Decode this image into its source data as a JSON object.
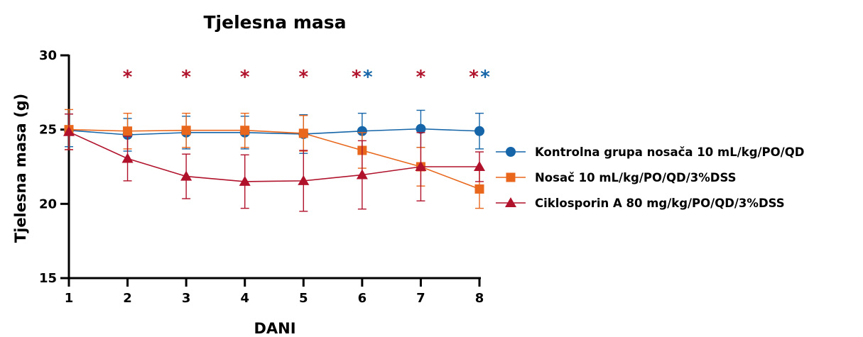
{
  "chart_data": {
    "type": "line",
    "title": "Tjelesna masa",
    "xlabel": "DANI",
    "ylabel": "Tjelesna masa (g)",
    "x": [
      1,
      2,
      3,
      4,
      5,
      6,
      7,
      8
    ],
    "ylim": [
      15,
      30
    ],
    "yticks": [
      15,
      20,
      25,
      30
    ],
    "grid": false,
    "legend_position": "right",
    "series": [
      {
        "name": "Kontrolna grupa nosača 10 mL/kg/PO/QD",
        "color": "#1565A8",
        "marker": "circle",
        "values": [
          24.95,
          24.65,
          24.8,
          24.8,
          24.7,
          24.9,
          25.05,
          24.9
        ],
        "errors": [
          1.1,
          1.1,
          1.1,
          1.1,
          1.3,
          1.2,
          1.25,
          1.2
        ]
      },
      {
        "name": "Nosač 10 mL/kg/PO/QD/3%DSS",
        "color": "#E8671C",
        "marker": "square",
        "values": [
          25.0,
          24.9,
          24.95,
          24.95,
          24.75,
          23.6,
          22.5,
          21.0
        ],
        "errors": [
          1.35,
          1.2,
          1.15,
          1.15,
          1.2,
          1.2,
          1.3,
          1.3
        ]
      },
      {
        "name": "Ciklosporin A 80 mg/kg/PO/QD/3%DSS",
        "color": "#B0122B",
        "marker": "triangle",
        "values": [
          24.85,
          23.05,
          21.85,
          21.5,
          21.55,
          21.95,
          22.5,
          22.5
        ],
        "errors": [
          1.2,
          1.5,
          1.5,
          1.8,
          2.05,
          2.3,
          2.3,
          1.0
        ]
      }
    ],
    "annotations": [
      {
        "x": 2,
        "text": "*",
        "color": "#B0122B"
      },
      {
        "x": 3,
        "text": "*",
        "color": "#B0122B"
      },
      {
        "x": 4,
        "text": "*",
        "color": "#B0122B"
      },
      {
        "x": 5,
        "text": "*",
        "color": "#B0122B"
      },
      {
        "x": 6,
        "text": "*",
        "color": "#B0122B"
      },
      {
        "x": 6,
        "text": "*",
        "color": "#1565A8"
      },
      {
        "x": 7,
        "text": "*",
        "color": "#B0122B"
      },
      {
        "x": 8,
        "text": "*",
        "color": "#B0122B"
      },
      {
        "x": 8,
        "text": "*",
        "color": "#1565A8"
      }
    ]
  }
}
